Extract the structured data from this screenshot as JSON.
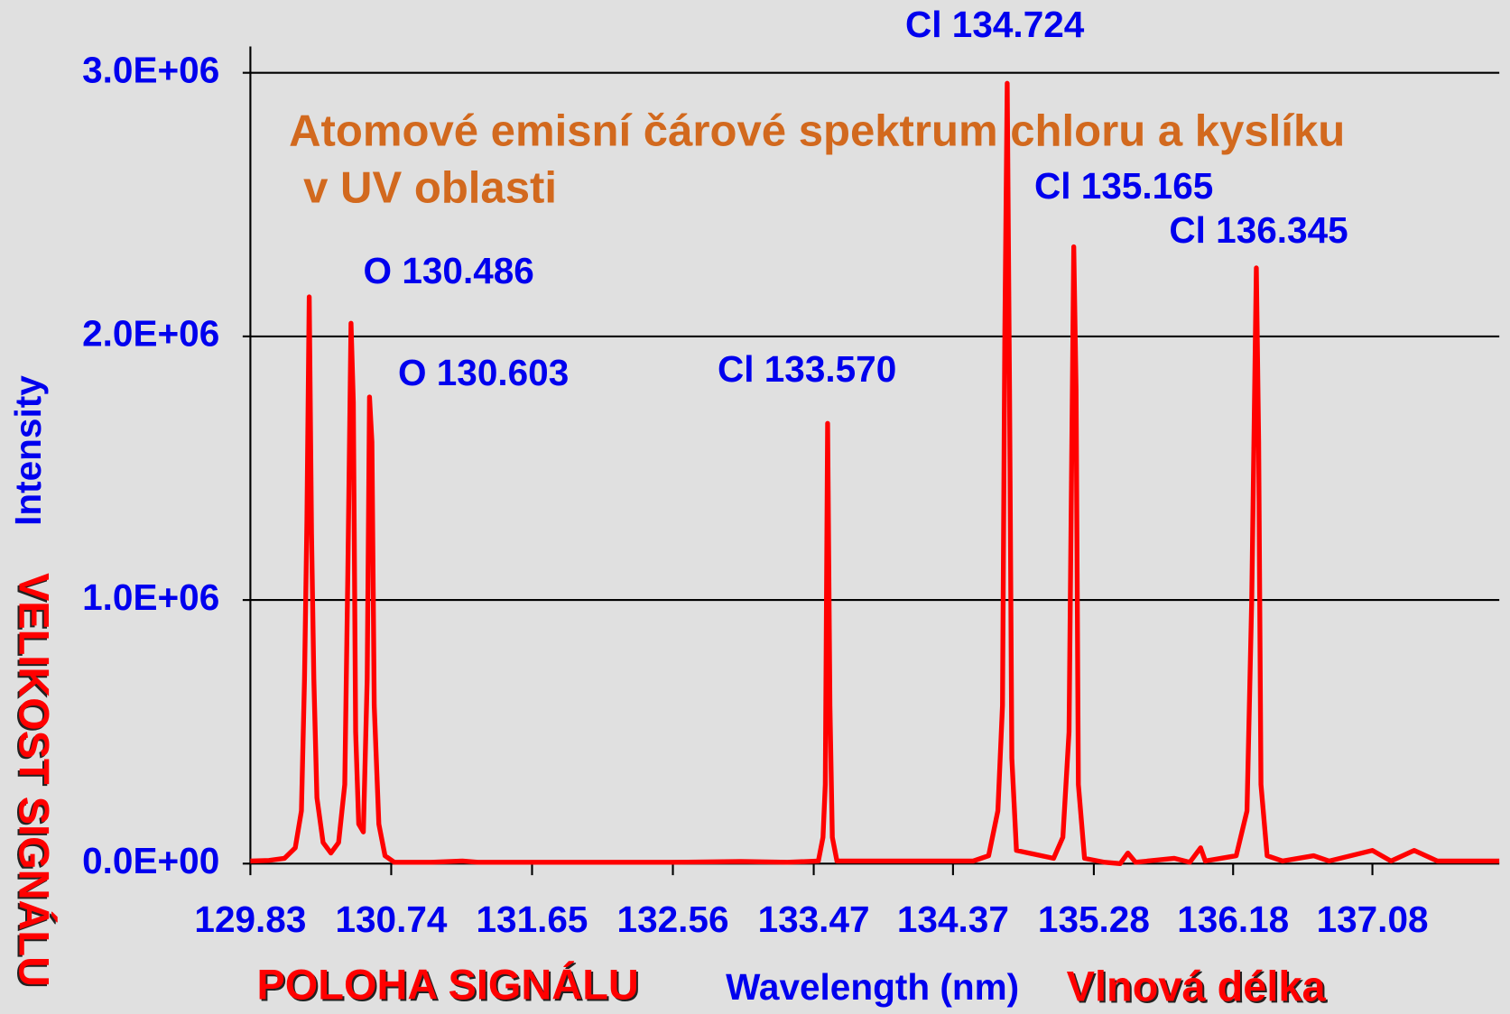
{
  "chart_data": {
    "type": "line",
    "title_lines": [
      "Atomové emisní čárové spektrum chloru a kyslíku",
      "v UV oblasti"
    ],
    "x_label": "Wavelength (nm)",
    "y_label": "Intensity",
    "annotations": [
      "Cl 134.724",
      "Cl 135.165",
      "Cl 136.345",
      "O 130.486",
      "O 130.603",
      "Cl 133.570",
      "VELIKOST SIGNÁLU",
      "POLOHA SIGNÁLU",
      "Vlnová délka"
    ],
    "xlim": [
      129.83,
      137.9
    ],
    "xticks": [
      129.83,
      130.74,
      131.65,
      132.56,
      133.47,
      134.37,
      135.28,
      136.18,
      137.08
    ],
    "ylim": [
      0,
      3100000
    ],
    "yticks": [
      {
        "value": 0,
        "label": "0.0E+00"
      },
      {
        "value": 1000000,
        "label": "1.0E+06"
      },
      {
        "value": 2000000,
        "label": "2.0E+06"
      },
      {
        "value": 3000000,
        "label": "3.0E+06"
      }
    ],
    "grid": true,
    "series": [
      {
        "name": "Intensity",
        "color": "#ff0000",
        "x": [
          129.83,
          129.95,
          130.05,
          130.12,
          130.16,
          130.18,
          130.195,
          130.21,
          130.225,
          130.24,
          130.26,
          130.3,
          130.35,
          130.4,
          130.44,
          130.46,
          130.48,
          130.495,
          130.51,
          130.53,
          130.56,
          130.585,
          130.6,
          130.615,
          130.63,
          130.66,
          130.7,
          130.76,
          131.0,
          131.2,
          131.3,
          132.56,
          133.0,
          133.3,
          133.5,
          133.53,
          133.545,
          133.56,
          133.575,
          133.59,
          133.62,
          134.5,
          134.6,
          134.66,
          134.69,
          134.705,
          134.72,
          134.735,
          134.75,
          134.78,
          135.02,
          135.08,
          135.12,
          135.15,
          135.165,
          135.18,
          135.22,
          135.35,
          135.45,
          135.5,
          135.55,
          135.8,
          135.9,
          135.97,
          136.0,
          136.2,
          136.27,
          136.3,
          136.33,
          136.345,
          136.36,
          136.4,
          136.5,
          136.7,
          136.8,
          137.08,
          137.2,
          137.35,
          137.5,
          137.9
        ],
        "values": [
          10000,
          12000,
          20000,
          60000,
          200000,
          700000,
          1300000,
          2150000,
          1250000,
          700000,
          250000,
          80000,
          40000,
          80000,
          300000,
          1100000,
          2050000,
          1750000,
          500000,
          150000,
          120000,
          700000,
          1770000,
          1600000,
          600000,
          150000,
          30000,
          5000,
          5000,
          10000,
          5000,
          5000,
          8000,
          5000,
          10000,
          100000,
          300000,
          1670000,
          600000,
          100000,
          10000,
          10000,
          30000,
          200000,
          600000,
          2000000,
          2960000,
          1800000,
          400000,
          50000,
          20000,
          100000,
          500000,
          2340000,
          1800000,
          300000,
          20000,
          5000,
          0,
          40000,
          5000,
          20000,
          5000,
          60000,
          10000,
          30000,
          200000,
          1000000,
          2260000,
          1600000,
          300000,
          30000,
          10000,
          30000,
          10000,
          50000,
          10000,
          50000,
          10000,
          10000
        ]
      }
    ]
  }
}
